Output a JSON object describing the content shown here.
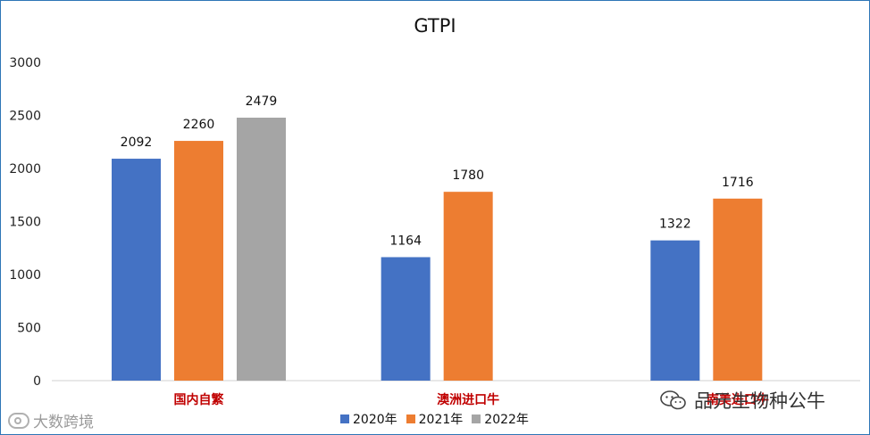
{
  "chart_data": {
    "type": "bar",
    "title": "GTPI",
    "categories": [
      "国内自繁",
      "澳洲进口牛",
      "南美进口牛"
    ],
    "series": [
      {
        "name": "2020年",
        "color": "#4472c4",
        "values": [
          2092,
          1164,
          1322
        ]
      },
      {
        "name": "2021年",
        "color": "#ed7d31",
        "values": [
          2260,
          1780,
          1716
        ]
      },
      {
        "name": "2022年",
        "color": "#a5a5a5",
        "values": [
          2479,
          null,
          null
        ]
      }
    ],
    "yticks": [
      0,
      500,
      1000,
      1500,
      2000,
      2500,
      3000
    ],
    "ylim": [
      0,
      3000
    ],
    "grid": false,
    "legend_position": "bottom",
    "data_labels": true
  },
  "watermarks": {
    "left_text": "大数跨境",
    "right_text": "品元生物种公牛",
    "right_icon": "wechat-icon",
    "left_icon": "logo-icon"
  }
}
